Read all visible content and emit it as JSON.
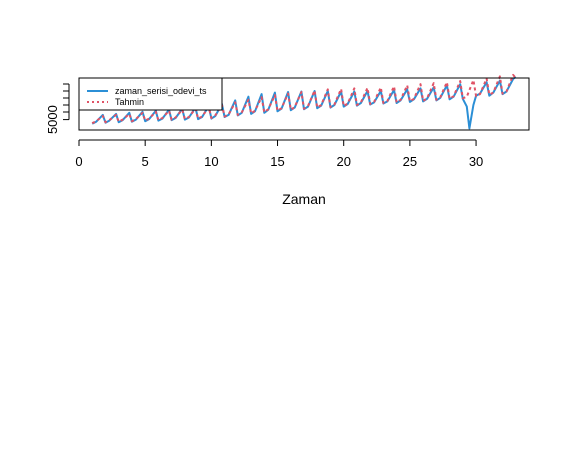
{
  "chart_data": {
    "type": "line",
    "title": "",
    "xlabel": "Zaman",
    "ylabel": "",
    "xlim": [
      0,
      34
    ],
    "ylim": [
      3000,
      13000
    ],
    "xticks": [
      0,
      5,
      10,
      15,
      20,
      25,
      30
    ],
    "xtick_labels": [
      "0",
      "5",
      "10",
      "15",
      "20",
      "25",
      "30"
    ],
    "yticks": [
      5000
    ],
    "ytick_labels": [
      "5000"
    ],
    "grid": false,
    "legend": {
      "position": "top-left",
      "entries": [
        "zaman_serisi_odevi_ts",
        "Tahmin"
      ]
    },
    "series": [
      {
        "name": "zaman_serisi_odevi_ts",
        "color": "#2B8FD6",
        "style": "solid",
        "x": [
          1.0,
          1.3,
          1.8,
          2.0,
          2.3,
          2.8,
          3.0,
          3.3,
          3.8,
          4.0,
          4.3,
          4.8,
          5.0,
          5.3,
          5.8,
          6.0,
          6.3,
          6.8,
          7.0,
          7.3,
          7.8,
          8.0,
          8.3,
          8.8,
          9.0,
          9.3,
          9.8,
          10.0,
          10.3,
          10.8,
          11.0,
          11.3,
          11.8,
          12.0,
          12.3,
          12.8,
          13.0,
          13.3,
          13.8,
          14.0,
          14.3,
          14.8,
          15.0,
          15.3,
          15.8,
          16.0,
          16.3,
          16.8,
          17.0,
          17.3,
          17.8,
          18.0,
          18.3,
          18.8,
          19.0,
          19.3,
          19.8,
          20.0,
          20.3,
          20.8,
          21.0,
          21.3,
          21.8,
          22.0,
          22.3,
          22.8,
          23.0,
          23.3,
          23.8,
          24.0,
          24.3,
          24.8,
          25.0,
          25.3,
          25.8,
          26.0,
          26.3,
          26.8,
          27.0,
          27.3,
          27.8,
          28.0,
          28.3,
          28.8,
          29.0,
          29.3,
          29.5,
          29.8,
          30.0,
          30.3,
          30.8,
          31.0,
          31.3,
          31.8,
          32.0,
          32.3,
          32.8,
          33.0
        ],
        "y": [
          4200,
          4600,
          5900,
          4400,
          4800,
          6100,
          4500,
          4900,
          6300,
          4600,
          5000,
          6500,
          4700,
          5100,
          6700,
          4800,
          5200,
          6900,
          4900,
          5300,
          7100,
          5000,
          5400,
          7300,
          5100,
          5500,
          7600,
          5200,
          5700,
          8000,
          5500,
          5900,
          8700,
          5800,
          6300,
          9400,
          6100,
          6600,
          9900,
          6300,
          6900,
          10200,
          6600,
          7100,
          10300,
          6800,
          7300,
          10400,
          7000,
          7500,
          10500,
          7200,
          7700,
          10500,
          7300,
          7800,
          10400,
          7500,
          8000,
          10400,
          7700,
          8200,
          10500,
          7900,
          8300,
          10500,
          8100,
          8500,
          10700,
          8200,
          8700,
          10800,
          8400,
          8900,
          11000,
          8500,
          9000,
          11200,
          8700,
          9200,
          11600,
          8900,
          9400,
          11800,
          9000,
          7500,
          3300,
          7800,
          9600,
          10000,
          12200,
          9600,
          10200,
          12500,
          9900,
          10400,
          12800,
          13200
        ]
      },
      {
        "name": "Tahmin",
        "color": "#E05366",
        "style": "dashed",
        "x": [
          1.0,
          1.3,
          1.8,
          2.0,
          2.3,
          2.8,
          3.0,
          3.3,
          3.8,
          4.0,
          4.3,
          4.8,
          5.0,
          5.3,
          5.8,
          6.0,
          6.3,
          6.8,
          7.0,
          7.3,
          7.8,
          8.0,
          8.3,
          8.8,
          9.0,
          9.3,
          9.8,
          10.0,
          10.3,
          10.8,
          11.0,
          11.3,
          11.8,
          12.0,
          12.3,
          12.8,
          13.0,
          13.3,
          13.8,
          14.0,
          14.3,
          14.8,
          15.0,
          15.3,
          15.8,
          16.0,
          16.3,
          16.8,
          17.0,
          17.3,
          17.8,
          18.0,
          18.3,
          18.8,
          19.0,
          19.3,
          19.8,
          20.0,
          20.3,
          20.8,
          21.0,
          21.3,
          21.8,
          22.0,
          22.3,
          22.8,
          23.0,
          23.3,
          23.8,
          24.0,
          24.3,
          24.8,
          25.0,
          25.3,
          25.8,
          26.0,
          26.3,
          26.8,
          27.0,
          27.3,
          27.8,
          28.0,
          28.3,
          28.8,
          29.0,
          29.3,
          29.8,
          30.0,
          30.3,
          30.8,
          31.0,
          31.3,
          31.8,
          32.0,
          32.3,
          32.8,
          33.0
        ],
        "y": [
          4300,
          4700,
          5700,
          4500,
          4900,
          5900,
          4600,
          5000,
          6100,
          4700,
          5100,
          6300,
          4800,
          5200,
          6500,
          4900,
          5300,
          6700,
          5000,
          5400,
          6900,
          5100,
          5500,
          7100,
          5200,
          5600,
          7400,
          5300,
          5800,
          7800,
          5600,
          6000,
          8300,
          5900,
          6400,
          8800,
          6200,
          6700,
          9300,
          6400,
          7000,
          9700,
          6700,
          7200,
          10000,
          6900,
          7400,
          10300,
          7100,
          7600,
          10600,
          7300,
          7800,
          10800,
          7400,
          7900,
          10900,
          7600,
          8100,
          11000,
          7800,
          8300,
          11100,
          8000,
          8400,
          11200,
          8200,
          8600,
          11400,
          8300,
          8800,
          11600,
          8500,
          9000,
          11800,
          8600,
          9100,
          12000,
          8800,
          9300,
          12200,
          9000,
          9500,
          12400,
          9100,
          9400,
          12600,
          9500,
          9900,
          12900,
          9800,
          10200,
          13300,
          10000,
          10400,
          13600,
          13000
        ]
      }
    ]
  }
}
